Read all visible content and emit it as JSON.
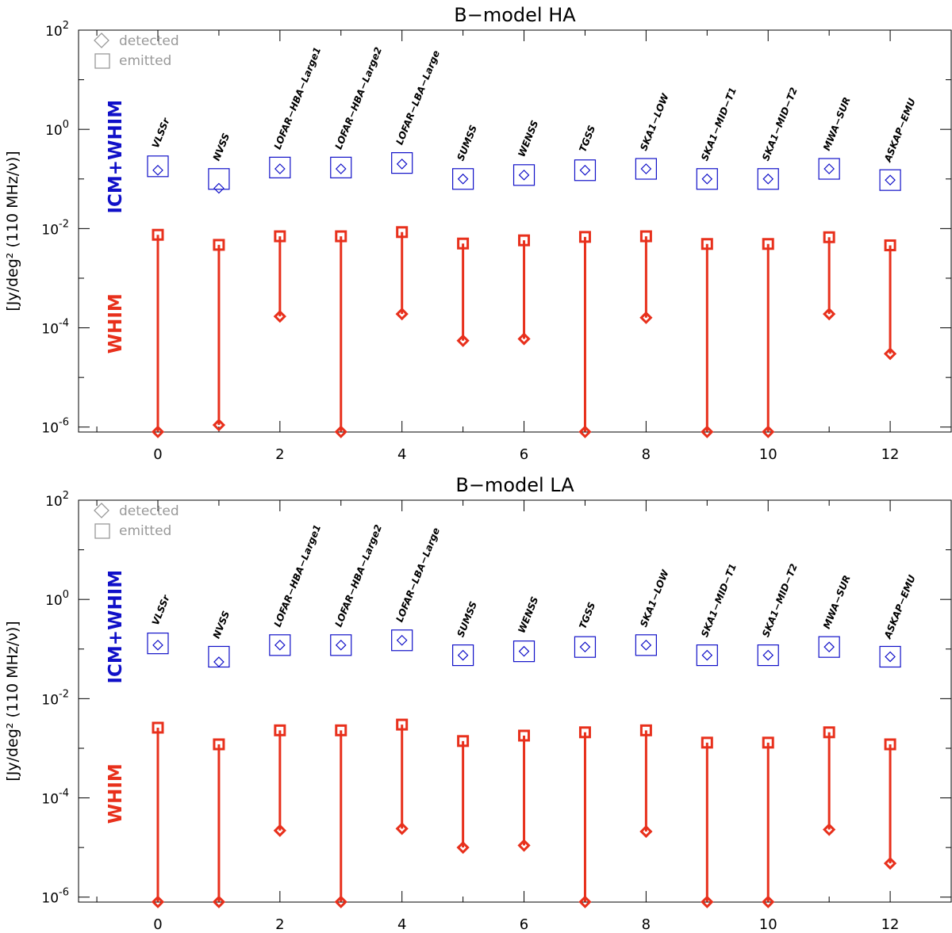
{
  "chart_data": [
    {
      "type": "scatter",
      "title": "B−model HA",
      "xlabel": "",
      "ylabel": "[Jy/deg² (110 MHz/ν)]",
      "xlim": [
        -1.3,
        13.0
      ],
      "ylim_log10": [
        -6.1,
        2
      ],
      "log_y": true,
      "y_ticks": [
        "10^2",
        "10^0",
        "10^-2",
        "10^-4",
        "10^-6"
      ],
      "y_tick_values": [
        2,
        0,
        -2,
        -4,
        -6
      ],
      "x_ticks": [
        "0",
        "2",
        "4",
        "6",
        "8",
        "10",
        "12"
      ],
      "legend": {
        "position": "top-left",
        "detected": "detected",
        "emitted": "emitted"
      },
      "region_labels": {
        "upper": "ICM+WHIM",
        "lower": "WHIM"
      },
      "colors": {
        "icm": "#1010c8",
        "whim": "#e8301c",
        "legend": "#999999",
        "axis": "#000000"
      },
      "x": [
        0,
        1,
        2,
        3,
        4,
        5,
        6,
        7,
        8,
        9,
        10,
        11,
        12
      ],
      "surveys": [
        "VLSSr",
        "NVSS",
        "LOFAR−HBA−Large1",
        "LOFAR−HBA−Large2",
        "LOFAR−LBA−Large",
        "SUMSS",
        "WENSS",
        "TGSS",
        "SKA1−LOW",
        "SKA1−MID−T1",
        "SKA1−MID−T2",
        "MWA−SUR",
        "ASKAP−EMU"
      ],
      "series": [
        {
          "name": "ICM+WHIM emitted",
          "marker": "square",
          "values": [
            0.18,
            0.1,
            0.17,
            0.17,
            0.21,
            0.1,
            0.12,
            0.15,
            0.16,
            0.1,
            0.1,
            0.16,
            0.095
          ]
        },
        {
          "name": "ICM+WHIM detected",
          "marker": "diamond",
          "values": [
            0.15,
            0.065,
            0.16,
            0.16,
            0.2,
            0.1,
            0.12,
            0.15,
            0.16,
            0.1,
            0.1,
            0.16,
            0.095
          ]
        },
        {
          "name": "WHIM emitted",
          "marker": "square",
          "values": [
            0.0075,
            0.0047,
            0.007,
            0.007,
            0.0085,
            0.005,
            0.0058,
            0.0068,
            0.007,
            0.0049,
            0.0049,
            0.0067,
            0.0046
          ]
        },
        {
          "name": "WHIM detected",
          "marker": "diamond",
          "values": [
            8e-07,
            1.1e-06,
            0.00017,
            8e-07,
            0.00019,
            5.5e-05,
            6e-05,
            8e-07,
            0.00016,
            8e-07,
            8e-07,
            0.00019,
            3e-05
          ]
        }
      ]
    },
    {
      "type": "scatter",
      "title": "B−model LA",
      "xlabel": "",
      "ylabel": "[Jy/deg² (110 MHz/ν)]",
      "xlim": [
        -1.3,
        13.0
      ],
      "ylim_log10": [
        -6.1,
        2
      ],
      "log_y": true,
      "y_ticks": [
        "10^2",
        "10^0",
        "10^-2",
        "10^-4",
        "10^-6"
      ],
      "y_tick_values": [
        2,
        0,
        -2,
        -4,
        -6
      ],
      "x_ticks": [
        "0",
        "2",
        "4",
        "6",
        "8",
        "10",
        "12"
      ],
      "legend": {
        "position": "top-left",
        "detected": "detected",
        "emitted": "emitted"
      },
      "region_labels": {
        "upper": "ICM+WHIM",
        "lower": "WHIM"
      },
      "colors": {
        "icm": "#1010c8",
        "whim": "#e8301c",
        "legend": "#999999",
        "axis": "#000000"
      },
      "x": [
        0,
        1,
        2,
        3,
        4,
        5,
        6,
        7,
        8,
        9,
        10,
        11,
        12
      ],
      "surveys": [
        "VLSSr",
        "NVSS",
        "LOFAR−HBA−Large1",
        "LOFAR−HBA−Large2",
        "LOFAR−LBA−Large",
        "SUMSS",
        "WENSS",
        "TGSS",
        "SKA1−LOW",
        "SKA1−MID−T1",
        "SKA1−MID−T2",
        "MWA−SUR",
        "ASKAP−EMU"
      ],
      "series": [
        {
          "name": "ICM+WHIM emitted",
          "marker": "square",
          "values": [
            0.13,
            0.07,
            0.12,
            0.12,
            0.15,
            0.075,
            0.09,
            0.11,
            0.12,
            0.075,
            0.075,
            0.11,
            0.07
          ]
        },
        {
          "name": "ICM+WHIM detected",
          "marker": "diamond",
          "values": [
            0.12,
            0.055,
            0.12,
            0.12,
            0.15,
            0.075,
            0.09,
            0.11,
            0.12,
            0.075,
            0.075,
            0.11,
            0.07
          ]
        },
        {
          "name": "WHIM emitted",
          "marker": "square",
          "values": [
            0.0026,
            0.0012,
            0.0023,
            0.0023,
            0.003,
            0.0014,
            0.0018,
            0.0021,
            0.0023,
            0.0013,
            0.0013,
            0.0021,
            0.0012
          ]
        },
        {
          "name": "WHIM detected",
          "marker": "diamond",
          "values": [
            8e-07,
            8e-07,
            2.2e-05,
            8e-07,
            2.4e-05,
            1e-05,
            1.1e-05,
            8e-07,
            2.1e-05,
            8e-07,
            8e-07,
            2.3e-05,
            4.8e-06
          ]
        }
      ]
    }
  ]
}
